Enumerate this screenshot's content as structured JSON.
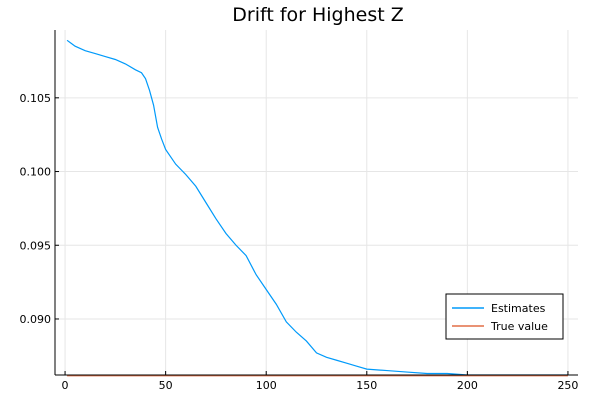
{
  "chart_data": {
    "type": "line",
    "title": "Drift for Highest Z",
    "xlabel": "",
    "ylabel": "",
    "xlim": [
      -5,
      255
    ],
    "ylim": [
      0.0862,
      0.1096
    ],
    "xticks": [
      0,
      50,
      100,
      150,
      200,
      250
    ],
    "yticks": [
      0.09,
      0.095,
      0.1,
      0.105
    ],
    "xtick_labels": [
      "0",
      "50",
      "100",
      "150",
      "200",
      "250"
    ],
    "ytick_labels": [
      "0.090",
      "0.095",
      "0.100",
      "0.105"
    ],
    "grid": true,
    "legend_position": "bottom-right",
    "series": [
      {
        "name": "Estimates",
        "color": "#009AFA",
        "x": [
          1,
          3,
          5,
          10,
          15,
          20,
          25,
          30,
          35,
          38,
          40,
          42,
          44,
          46,
          48,
          50,
          55,
          60,
          65,
          70,
          75,
          80,
          85,
          90,
          95,
          100,
          105,
          110,
          115,
          120,
          125,
          130,
          135,
          140,
          145,
          150,
          160,
          170,
          180,
          190,
          200,
          210,
          220,
          230,
          240,
          250
        ],
        "y": [
          0.1089,
          0.1087,
          0.1085,
          0.1082,
          0.108,
          0.1078,
          0.1076,
          0.1073,
          0.1069,
          0.1067,
          0.1063,
          0.1055,
          0.1045,
          0.103,
          0.1022,
          0.1015,
          0.1005,
          0.0998,
          0.099,
          0.0979,
          0.0968,
          0.0958,
          0.095,
          0.0943,
          0.093,
          0.092,
          0.091,
          0.0898,
          0.0891,
          0.0885,
          0.0877,
          0.0874,
          0.0872,
          0.087,
          0.0868,
          0.0866,
          0.0865,
          0.0864,
          0.0863,
          0.0863,
          0.0862,
          0.0862,
          0.0862,
          0.0862,
          0.0862,
          0.0862
        ]
      },
      {
        "name": "True value",
        "color": "#E26F46",
        "x": [
          1,
          250
        ],
        "y": [
          0.08615,
          0.08615
        ]
      }
    ]
  }
}
